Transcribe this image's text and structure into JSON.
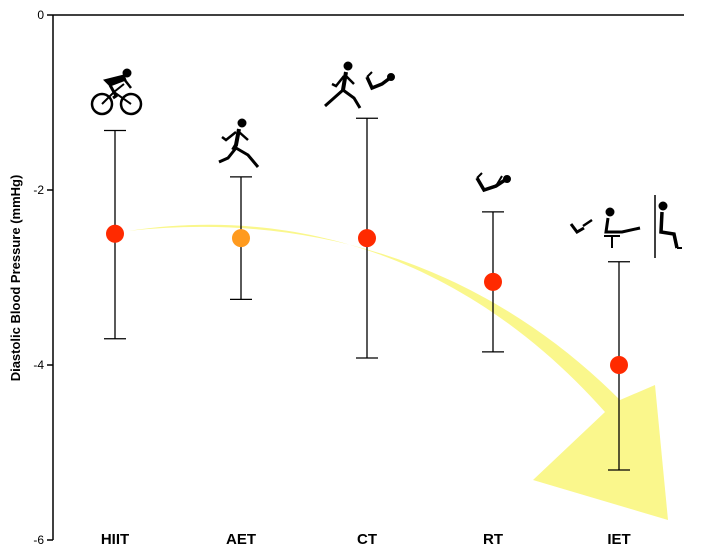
{
  "chart_data": {
    "type": "scatter",
    "ylabel": "Diastolic Blood Pressure (mmHg)",
    "categories": [
      "HIIT",
      "AET",
      "CT",
      "RT",
      "IET"
    ],
    "ylim": [
      -6,
      0
    ],
    "yticks": [
      0,
      -2,
      -4,
      -6
    ],
    "ytick_labels": [
      "0",
      "-2",
      "-4",
      "-6"
    ],
    "series": [
      {
        "values": [
          -2.5,
          -2.55,
          -2.55,
          -3.05,
          -4.0
        ],
        "lower": [
          -3.7,
          -3.25,
          -3.92,
          -3.85,
          -5.2
        ],
        "upper": [
          -1.32,
          -1.85,
          -1.18,
          -2.25,
          -2.82
        ],
        "point_colors": [
          "#ff2a00",
          "#ff9a1e",
          "#ff2a00",
          "#ff2a00",
          "#ff2a00"
        ]
      }
    ],
    "icons": [
      "cyclist-icon",
      "runner-icon",
      "runner-and-situp-icon",
      "situp-icon",
      "handgrip-legpress-wallsquat-icon"
    ],
    "annotation_arrow_color": "#faf78c",
    "grid": false
  }
}
